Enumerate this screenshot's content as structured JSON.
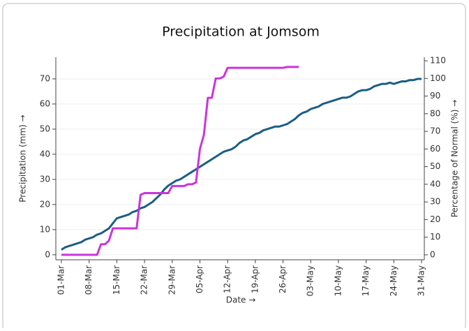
{
  "chart_data": {
    "type": "line",
    "title": "Precipitation at Jomsom",
    "xlabel": "Date →",
    "ylabel": "Precipitation (mm) →",
    "y2label": "Percentage of Normal (%) →",
    "categories": [
      "01-Mar",
      null,
      null,
      null,
      null,
      null,
      null,
      "08-Mar",
      null,
      null,
      null,
      null,
      null,
      null,
      "15-Mar",
      null,
      null,
      null,
      null,
      null,
      null,
      "22-Mar",
      null,
      null,
      null,
      null,
      null,
      null,
      "29-Mar",
      null,
      null,
      null,
      null,
      null,
      null,
      "05-Apr",
      null,
      null,
      null,
      null,
      null,
      null,
      "12-Apr",
      null,
      null,
      null,
      null,
      null,
      null,
      "19-Apr",
      null,
      null,
      null,
      null,
      null,
      null,
      "26-Apr",
      null,
      null,
      null,
      null,
      null,
      null,
      "03-May",
      null,
      null,
      null,
      null,
      null,
      null,
      "10-May",
      null,
      null,
      null,
      null,
      null,
      null,
      "17-May",
      null,
      null,
      null,
      null,
      null,
      null,
      "24-May",
      null,
      null,
      null,
      null,
      null,
      null,
      "31-May"
    ],
    "ylim": [
      -2,
      78.6
    ],
    "yticks": [
      0,
      10,
      20,
      30,
      40,
      50,
      60,
      70
    ],
    "y2lim": [
      -2.8,
      112
    ],
    "y2ticks": [
      0,
      10,
      20,
      30,
      40,
      50,
      60,
      70,
      80,
      90,
      100,
      110
    ],
    "grid": true,
    "series": [
      {
        "name": "Precipitation",
        "color": "#1b5e85",
        "axis": "y",
        "values": [
          2,
          3,
          3.5,
          4,
          4.5,
          5,
          6,
          6.5,
          7,
          8,
          8.5,
          9.5,
          10.5,
          12.5,
          14.5,
          15,
          15.5,
          16,
          17,
          17.5,
          18.5,
          19,
          20,
          21,
          22.5,
          24,
          26,
          27.5,
          28.5,
          29.5,
          30,
          31,
          32,
          33,
          34,
          35,
          36,
          37,
          38,
          39,
          40,
          41,
          41.5,
          42,
          43,
          44.5,
          45.5,
          46,
          47,
          48,
          48.5,
          49.5,
          50,
          50.5,
          51,
          51,
          51.5,
          52,
          53,
          54,
          55.5,
          56.5,
          57,
          58,
          58.5,
          59,
          60,
          60.5,
          61,
          61.5,
          62,
          62.5,
          62.5,
          63,
          64,
          65,
          65.5,
          65.5,
          66,
          67,
          67.5,
          68,
          68,
          68.5,
          68,
          68.5,
          69,
          69,
          69.5,
          69.5,
          70,
          70
        ]
      },
      {
        "name": "Percentage of Normal",
        "color": "#cc33dd",
        "axis": "y2",
        "values": [
          0,
          0,
          0,
          0,
          0,
          0,
          0,
          0,
          0,
          0,
          6,
          6,
          8,
          15,
          15,
          15,
          15,
          15,
          15,
          15,
          34,
          35,
          35,
          35,
          35,
          35,
          35,
          35,
          39,
          39,
          39,
          39,
          40,
          40,
          41,
          60,
          68,
          89,
          89,
          100,
          100,
          101,
          106,
          106,
          106,
          106,
          106,
          106,
          106,
          106,
          106,
          106,
          106,
          106,
          106,
          106,
          106,
          106.5,
          106.5,
          106.5,
          106.5,
          null,
          null,
          null,
          null,
          null,
          null,
          null,
          null,
          null,
          null,
          null,
          null,
          null,
          null,
          null,
          null,
          null,
          null,
          null,
          null,
          null,
          null,
          null,
          null,
          null,
          null,
          null,
          null,
          null,
          null,
          null
        ]
      }
    ]
  }
}
